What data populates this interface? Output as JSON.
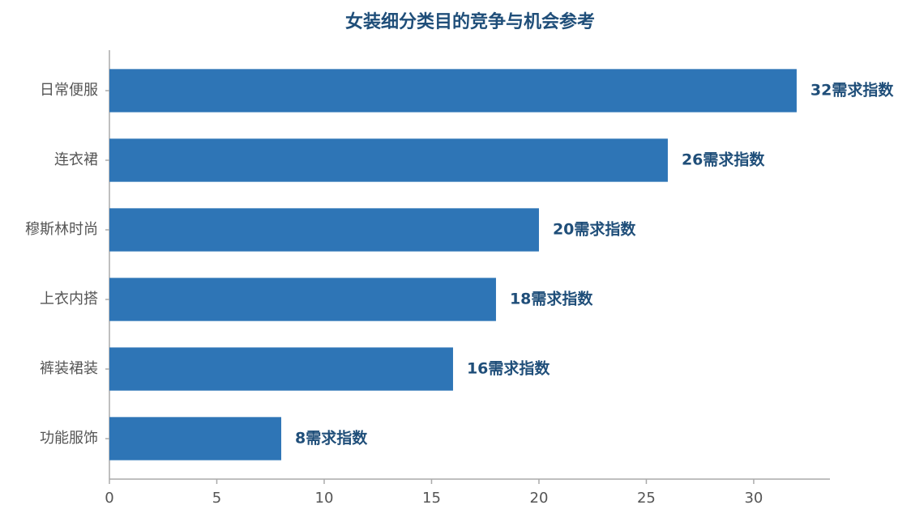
{
  "chart_data": {
    "type": "bar",
    "orientation": "horizontal",
    "title": "女装细分类目的竞争与机会参考",
    "categories": [
      "日常便服",
      "连衣裙",
      "穆斯林时尚",
      "上衣内搭",
      "裤装裙装",
      "功能服饰"
    ],
    "values": [
      32,
      26,
      20,
      18,
      16,
      8
    ],
    "value_labels": [
      "32需求指数",
      "26需求指数",
      "20需求指数",
      "18需求指数",
      "16需求指数",
      "8需求指数"
    ],
    "color": "#2e75b6",
    "xlim": [
      0,
      33.55
    ],
    "xticks": [
      0,
      5,
      10,
      15,
      20,
      25,
      30
    ],
    "grid": false
  }
}
